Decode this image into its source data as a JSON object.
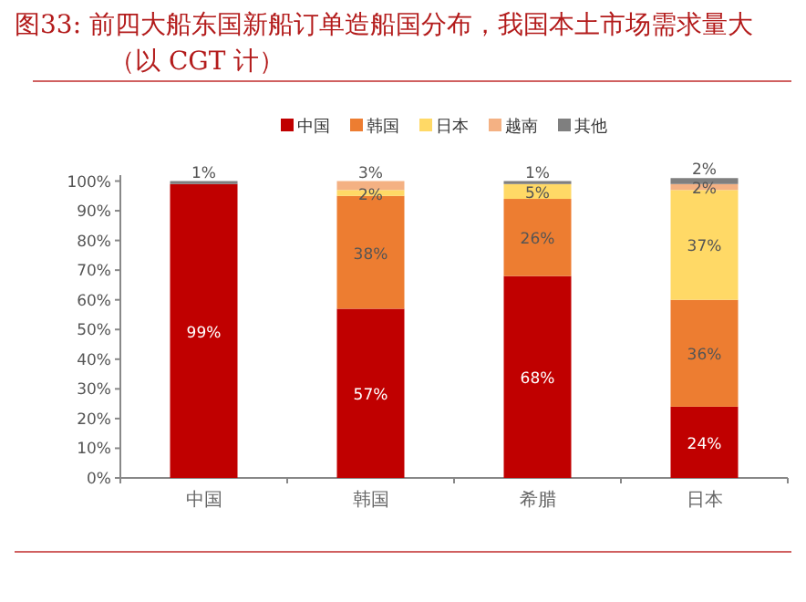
{
  "chart_data": {
    "type": "bar",
    "stacked": true,
    "title": "图33:  前四大船东国新船订单造船国分布，我国本土市场需求量大（以 CGT 计）",
    "categories": [
      "中国",
      "韩国",
      "希腊",
      "日本"
    ],
    "series": [
      {
        "name": "中国",
        "color": "#c00000",
        "values": [
          99,
          57,
          68,
          24
        ],
        "value_labels": [
          "99%",
          "57%",
          "68%",
          "24%"
        ]
      },
      {
        "name": "韩国",
        "color": "#ed7d31",
        "values": [
          0,
          38,
          26,
          36
        ],
        "value_labels": [
          null,
          "38%",
          "26%",
          "36%"
        ]
      },
      {
        "name": "日本",
        "color": "#ffd966",
        "values": [
          0,
          2,
          5,
          37
        ],
        "value_labels": [
          null,
          "2%",
          "5%",
          "37%"
        ]
      },
      {
        "name": "越南",
        "color": "#f4b183",
        "values": [
          0,
          3,
          0,
          2
        ],
        "value_labels": [
          null,
          "3%",
          null,
          "2%"
        ]
      },
      {
        "name": "其他",
        "color": "#7f7f7f",
        "values": [
          1,
          0,
          1,
          2
        ],
        "value_labels": [
          "1%",
          null,
          "1%",
          "2%"
        ]
      }
    ],
    "ylim": [
      0,
      102
    ],
    "yticks": [
      {
        "value": 0,
        "label": "0%"
      },
      {
        "value": 10,
        "label": "10%"
      },
      {
        "value": 20,
        "label": "20%"
      },
      {
        "value": 30,
        "label": "30%"
      },
      {
        "value": 40,
        "label": "40%"
      },
      {
        "value": 50,
        "label": "50%"
      },
      {
        "value": 60,
        "label": "60%"
      },
      {
        "value": 70,
        "label": "70%"
      },
      {
        "value": 80,
        "label": "80%"
      },
      {
        "value": 90,
        "label": "90%"
      },
      {
        "value": 100,
        "label": "100%"
      }
    ],
    "grid": false,
    "legend": "top"
  }
}
